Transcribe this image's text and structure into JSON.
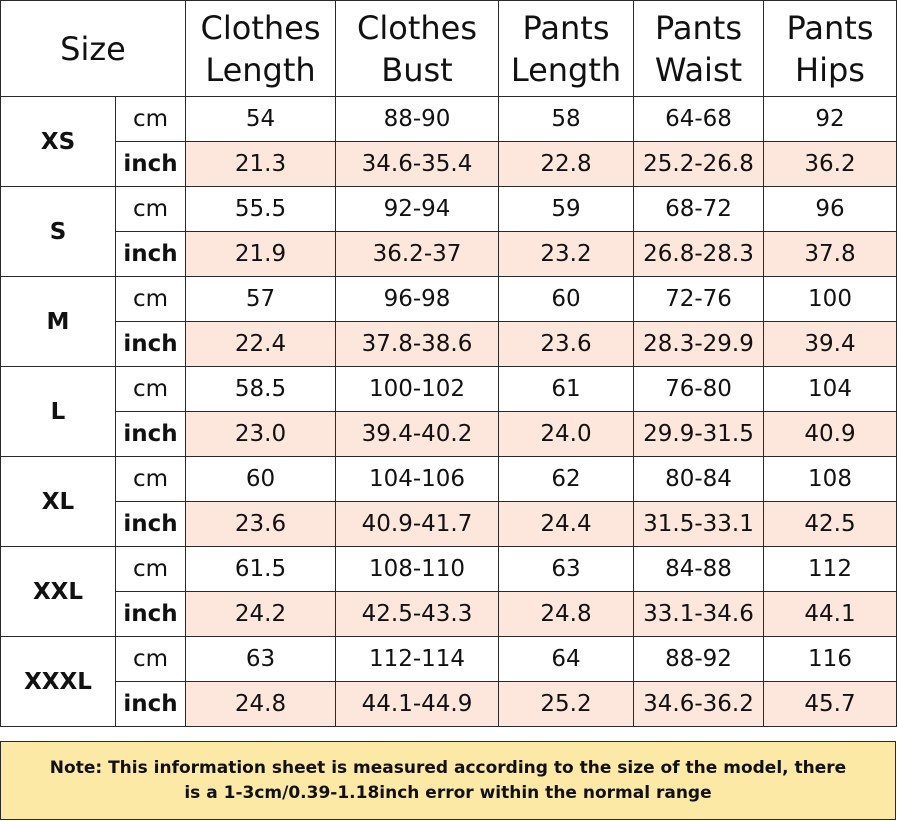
{
  "title": "Size",
  "columns": [
    {
      "line1": "Clothes",
      "line2": "Length"
    },
    {
      "line1": "Clothes",
      "line2": "Bust"
    },
    {
      "line1": "Pants",
      "line2": "Length"
    },
    {
      "line1": "Pants",
      "line2": "Waist"
    },
    {
      "line1": "Pants",
      "line2": "Hips"
    }
  ],
  "units": {
    "cm": "cm",
    "inch": "inch"
  },
  "rows": [
    {
      "size": "XS",
      "cm": [
        "54",
        "88-90",
        "58",
        "64-68",
        "92"
      ],
      "inch": [
        "21.3",
        "34.6-35.4",
        "22.8",
        "25.2-26.8",
        "36.2"
      ]
    },
    {
      "size": "S",
      "cm": [
        "55.5",
        "92-94",
        "59",
        "68-72",
        "96"
      ],
      "inch": [
        "21.9",
        "36.2-37",
        "23.2",
        "26.8-28.3",
        "37.8"
      ]
    },
    {
      "size": "M",
      "cm": [
        "57",
        "96-98",
        "60",
        "72-76",
        "100"
      ],
      "inch": [
        "22.4",
        "37.8-38.6",
        "23.6",
        "28.3-29.9",
        "39.4"
      ]
    },
    {
      "size": "L",
      "cm": [
        "58.5",
        "100-102",
        "61",
        "76-80",
        "104"
      ],
      "inch": [
        "23.0",
        "39.4-40.2",
        "24.0",
        "29.9-31.5",
        "40.9"
      ]
    },
    {
      "size": "XL",
      "cm": [
        "60",
        "104-106",
        "62",
        "80-84",
        "108"
      ],
      "inch": [
        "23.6",
        "40.9-41.7",
        "24.4",
        "31.5-33.1",
        "42.5"
      ]
    },
    {
      "size": "XXL",
      "cm": [
        "61.5",
        "108-110",
        "63",
        "84-88",
        "112"
      ],
      "inch": [
        "24.2",
        "42.5-43.3",
        "24.8",
        "33.1-34.6",
        "44.1"
      ]
    },
    {
      "size": "XXXL",
      "cm": [
        "63",
        "112-114",
        "64",
        "88-92",
        "116"
      ],
      "inch": [
        "24.8",
        "44.1-44.9",
        "25.2",
        "34.6-36.2",
        "45.7"
      ]
    }
  ],
  "note": "Note: This information sheet is measured according to the size of the model, there is a 1-3cm/0.39-1.18inch error within the normal range",
  "colors": {
    "inch_row_bg": "#fde7dc",
    "note_bg": "#fde9a6",
    "border": "#2a2a2a"
  }
}
